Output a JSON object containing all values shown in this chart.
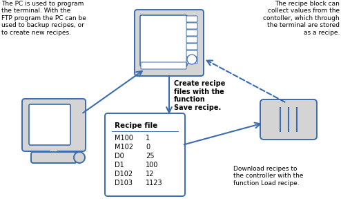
{
  "bg_color": "#ffffff",
  "blue_color": "#3A6BB0",
  "gray_fill": "#D4D4D4",
  "text_left": "The PC is used to program\nthe terminal. With the\nFTP program the PC can be\nused to backup recipes, or\nto create new recipes.",
  "text_right": "The recipe block can\ncollect values from the\ncontoller, which through\nthe terminal are stored\nas a recipe.",
  "text_middle": "Create recipe\nfiles with the\nfunction\nSave recipe.",
  "text_bottom_right": "Download recipes to\nthe controller with the\nfunction Load recipe.",
  "recipe_title": "Recipe file",
  "recipe_rows": [
    [
      "M100",
      "1"
    ],
    [
      "M102",
      "0"
    ],
    [
      "D0",
      "25"
    ],
    [
      "D1",
      "100"
    ],
    [
      "D102",
      "12"
    ],
    [
      "D103",
      "1123"
    ]
  ],
  "figsize": [
    4.94,
    2.91
  ],
  "dpi": 100
}
